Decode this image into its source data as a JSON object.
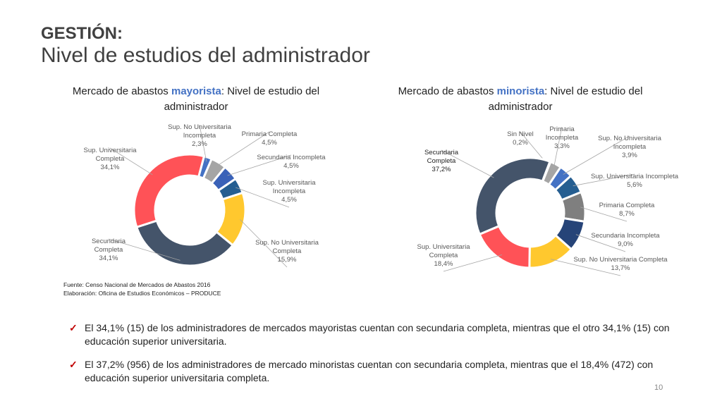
{
  "header": {
    "title_line1": "GESTIÓN:",
    "title_line2": "Nivel de estudios del administrador"
  },
  "charts_titles": [
    {
      "prefix": "Mercado de abastos ",
      "highlight": "mayorista",
      "suffix": ": Nivel de estudio del administrador"
    },
    {
      "prefix": "Mercado de abastos ",
      "highlight": "minorista",
      "suffix": ": Nivel de estudio del administrador"
    }
  ],
  "chart_data": [
    {
      "type": "pie",
      "variant": "donut",
      "title": "Mercado de abastos mayorista: Nivel de estudio del administrador",
      "slices": [
        {
          "label": "Sup. No Universitaria Incompleta",
          "value": 2.3,
          "value_label": "2,3%",
          "color": "#4472C4"
        },
        {
          "label": "Primaria Completa",
          "value": 4.5,
          "value_label": "4,5%",
          "color": "#A5A5A5"
        },
        {
          "label": "Secundaria Incompleta",
          "value": 4.5,
          "value_label": "4,5%",
          "color": "#3A62B8"
        },
        {
          "label": "Sup. Universitaria Incompleta",
          "value": 4.5,
          "value_label": "4,5%",
          "color": "#255E91"
        },
        {
          "label": "Sup. No Universitaria Completa",
          "value": 15.9,
          "value_label": "15,9%",
          "color": "#FFC82E"
        },
        {
          "label": "Secundaria Completa",
          "value": 34.1,
          "value_label": "34,1%",
          "color": "#44546A"
        },
        {
          "label": "Sup. Universitaria Completa",
          "value": 34.1,
          "value_label": "34,1%",
          "color": "#FF5257"
        }
      ]
    },
    {
      "type": "pie",
      "variant": "donut",
      "title": "Mercado de abastos minorista: Nivel de estudio del administrador",
      "slices": [
        {
          "label": "Sin Nivel",
          "value": 0.2,
          "value_label": "0,2%",
          "color": "#5B5B5B"
        },
        {
          "label": "Primaria Incompleta",
          "value": 3.3,
          "value_label": "3,3%",
          "color": "#A5A5A5"
        },
        {
          "label": "Sup. No Universitaria Incompleta",
          "value": 3.9,
          "value_label": "3,9%",
          "color": "#4472C4"
        },
        {
          "label": "Sup. Universitaria Incompleta",
          "value": 5.6,
          "value_label": "5,6%",
          "color": "#255E91"
        },
        {
          "label": "Primaria Completa",
          "value": 8.7,
          "value_label": "8,7%",
          "color": "#7F7F7F"
        },
        {
          "label": "Secundaria Incompleta",
          "value": 9.0,
          "value_label": "9,0%",
          "color": "#264478"
        },
        {
          "label": "Sup. No Universitaria Completa",
          "value": 13.7,
          "value_label": "13,7%",
          "color": "#FFC82E"
        },
        {
          "label": "Sup. Universitaria Completa",
          "value": 18.4,
          "value_label": "18,4%",
          "color": "#FF5257"
        },
        {
          "label": "Secundaria Completa",
          "value": 37.2,
          "value_label": "37,2%",
          "color": "#44546A"
        }
      ]
    }
  ],
  "source": {
    "line1": "Fuente: Censo Nacional de Mercados de Abastos 2016",
    "line2": "Elaboración: Oficina de Estudios Económicos – PRODUCE"
  },
  "bullets": [
    "El 34,1% (15) de los administradores de mercados mayoristas cuentan con secundaria completa, mientras que el otro 34,1% (15) con educación superior universitaria.",
    "El 37,2% (956) de los administradores de mercado minoristas cuentan con secundaria completa, mientras que el 18,4% (472) con educación superior universitaria completa."
  ],
  "check_glyph": "✓",
  "page_number": "10"
}
